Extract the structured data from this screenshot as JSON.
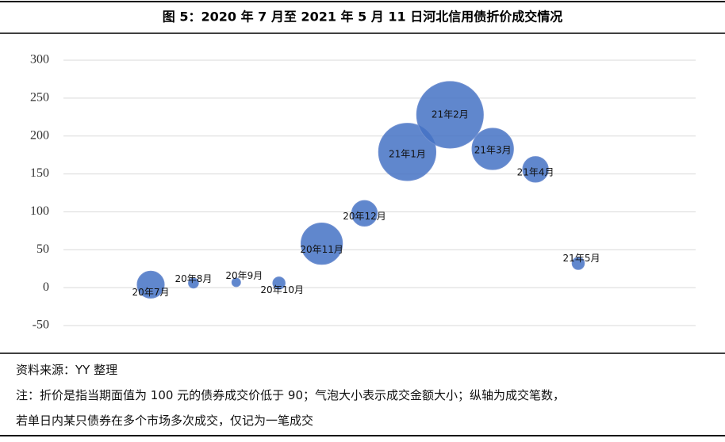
{
  "chart_data": {
    "type": "bubble",
    "title": "图 5：2020 年 7 月至 2021 年 5 月 11 日河北信用债折价成交情况",
    "categories": [
      "20年7月",
      "20年8月",
      "20年9月",
      "20年10月",
      "20年11月",
      "20年12月",
      "21年1月",
      "21年2月",
      "21年3月",
      "21年4月",
      "21年5月"
    ],
    "values": [
      4,
      6,
      7,
      6,
      58,
      98,
      179,
      228,
      183,
      156,
      32
    ],
    "sizes": [
      29,
      4,
      3,
      6,
      68,
      26,
      130,
      176,
      68,
      26,
      6
    ],
    "color": "#4472c4",
    "ylim": [
      -50,
      300
    ],
    "yticks": [
      -50,
      0,
      50,
      100,
      150,
      200,
      250,
      300
    ],
    "grid": true
  },
  "source": "资料来源：YY 整理",
  "note": [
    "注：折价是指当期面值为 100 元的债券成交价低于 90；气泡大小表示成交金额大小；纵轴为成交笔数，",
    "若单日内某只债券在多个市场多次成交，仅记为一笔成交"
  ]
}
